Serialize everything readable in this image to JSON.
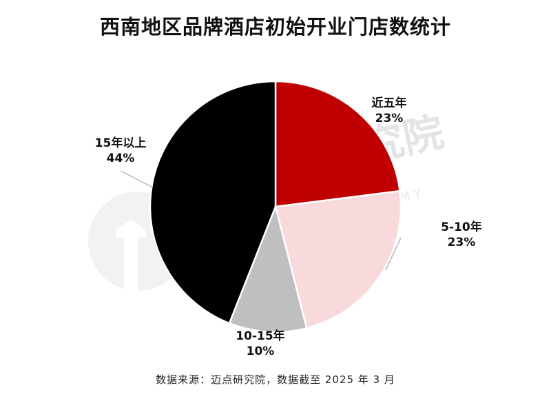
{
  "chart_data": {
    "type": "pie",
    "title": "西南地区品牌酒店初始开业门店数统计",
    "slices": [
      {
        "label": "近五年",
        "value": 23,
        "value_label": "23%",
        "color": "#c00000"
      },
      {
        "label": "5-10年",
        "value": 23,
        "value_label": "23%",
        "color": "#f8d9dc"
      },
      {
        "label": "10-15年",
        "value": 10,
        "value_label": "10%",
        "color": "#bfbfbf"
      },
      {
        "label": "15年以上",
        "value": 44,
        "value_label": "44%",
        "color": "#000000"
      }
    ],
    "start": "12 o'clock",
    "direction": "clockwise",
    "source": "数据来源：迈点研究院，数据截至 2025 年 3 月"
  },
  "watermark": {
    "brand": "点研究院",
    "sub": "DIN ACADEMY"
  }
}
